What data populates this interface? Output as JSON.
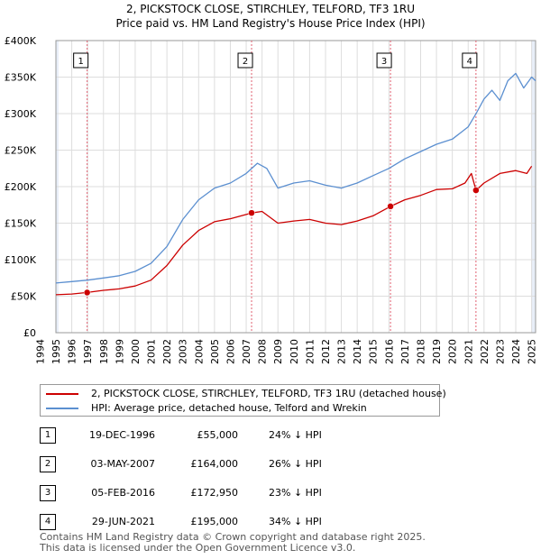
{
  "chart_data": {
    "type": "line",
    "title": "2, PICKSTOCK CLOSE, STIRCHLEY, TELFORD, TF3 1RU",
    "subtitle": "Price paid vs. HM Land Registry's House Price Index (HPI)",
    "xlim": [
      1995.0,
      2025.25
    ],
    "ylim": [
      0,
      400000
    ],
    "y_ticks": [
      0,
      50000,
      100000,
      150000,
      200000,
      250000,
      300000,
      350000,
      400000
    ],
    "y_tick_labels": [
      "£0",
      "£50K",
      "£100K",
      "£150K",
      "£200K",
      "£250K",
      "£300K",
      "£350K",
      "£400K"
    ],
    "x_ticks": [
      1994,
      1995,
      1996,
      1997,
      1998,
      1999,
      2000,
      2001,
      2002,
      2003,
      2004,
      2005,
      2006,
      2007,
      2008,
      2009,
      2010,
      2011,
      2012,
      2013,
      2014,
      2015,
      2016,
      2017,
      2018,
      2019,
      2020,
      2021,
      2022,
      2023,
      2024,
      2025
    ],
    "grid": true,
    "colors": {
      "property": "#cc0000",
      "hpi": "#5b8fd0",
      "sale_vline": "#e06070",
      "shade": "#e8eef8",
      "grid": "#dddddd"
    },
    "series": [
      {
        "name": "2, PICKSTOCK CLOSE, STIRCHLEY, TELFORD, TF3 1RU (detached house)",
        "x": [
          1995.0,
          1996.0,
          1996.97,
          1998.0,
          1999.0,
          2000.0,
          2001.0,
          2002.0,
          2003.0,
          2004.0,
          2005.0,
          2006.0,
          2007.34,
          2008.0,
          2009.0,
          2010.0,
          2011.0,
          2012.0,
          2013.0,
          2014.0,
          2015.0,
          2016.1,
          2017.0,
          2018.0,
          2019.0,
          2020.0,
          2020.8,
          2021.2,
          2021.49,
          2022.0,
          2023.0,
          2024.0,
          2024.7,
          2025.0
        ],
        "values": [
          52000,
          53000,
          55000,
          58000,
          60000,
          64000,
          72000,
          92000,
          120000,
          140000,
          152000,
          156000,
          164000,
          166000,
          150000,
          153000,
          155000,
          150000,
          148000,
          153000,
          160000,
          172950,
          182000,
          188000,
          196000,
          197000,
          205000,
          218000,
          195000,
          205000,
          218000,
          222000,
          218000,
          228000
        ]
      },
      {
        "name": "HPI: Average price, detached house, Telford and Wrekin",
        "x": [
          1995.0,
          1996.0,
          1997.0,
          1998.0,
          1999.0,
          2000.0,
          2001.0,
          2002.0,
          2003.0,
          2004.0,
          2005.0,
          2006.0,
          2007.0,
          2007.7,
          2008.3,
          2009.0,
          2010.0,
          2011.0,
          2012.0,
          2013.0,
          2014.0,
          2015.0,
          2016.0,
          2017.0,
          2018.0,
          2019.0,
          2020.0,
          2021.0,
          2021.5,
          2022.0,
          2022.5,
          2023.0,
          2023.5,
          2024.0,
          2024.5,
          2025.0,
          2025.25
        ],
        "values": [
          68000,
          70000,
          72000,
          75000,
          78000,
          84000,
          95000,
          118000,
          155000,
          182000,
          198000,
          205000,
          218000,
          232000,
          225000,
          198000,
          205000,
          208000,
          202000,
          198000,
          205000,
          215000,
          225000,
          238000,
          248000,
          258000,
          265000,
          282000,
          300000,
          320000,
          332000,
          318000,
          345000,
          355000,
          335000,
          350000,
          345000
        ]
      }
    ],
    "sales": [
      {
        "label": "1",
        "x": 1996.97,
        "value": 55000,
        "date": "19-DEC-1996",
        "price": "£55,000",
        "hpi": "24% ↓ HPI"
      },
      {
        "label": "2",
        "x": 2007.34,
        "value": 164000,
        "date": "03-MAY-2007",
        "price": "£164,000",
        "hpi": "26% ↓ HPI"
      },
      {
        "label": "3",
        "x": 2016.1,
        "value": 172950,
        "date": "05-FEB-2016",
        "price": "£172,950",
        "hpi": "23% ↓ HPI"
      },
      {
        "label": "4",
        "x": 2021.49,
        "value": 195000,
        "date": "29-JUN-2021",
        "price": "£195,000",
        "hpi": "34% ↓ HPI"
      }
    ]
  },
  "footer": {
    "line1": "Contains HM Land Registry data © Crown copyright and database right 2025.",
    "line2": "This data is licensed under the Open Government Licence v3.0."
  }
}
